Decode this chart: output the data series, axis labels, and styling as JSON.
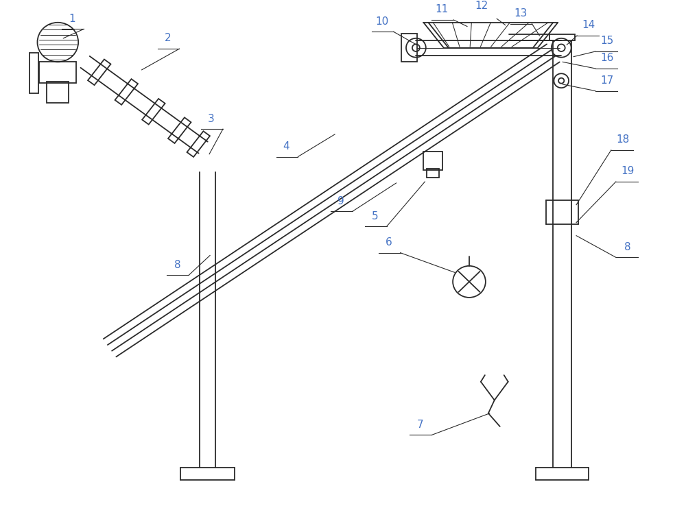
{
  "bg_color": "#ffffff",
  "line_color": "#2a2a2a",
  "label_color": "#4472c4",
  "label_fs": 11,
  "lw": 1.3,
  "figsize": [
    10.0,
    7.38
  ],
  "dpi": 100
}
